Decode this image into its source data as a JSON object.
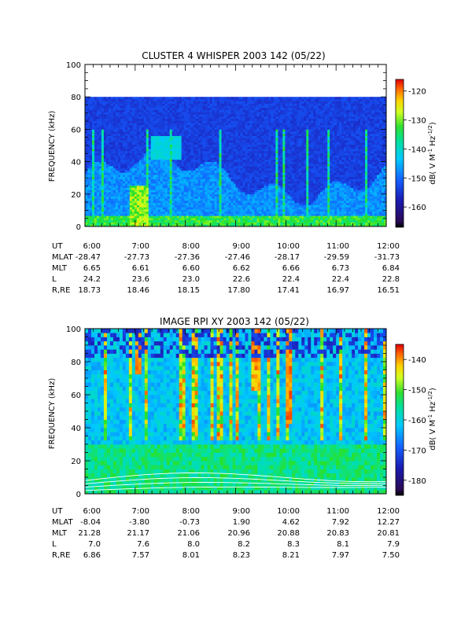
{
  "chart_data": [
    {
      "type": "heatmap",
      "title": "CLUSTER 4 WHISPER 2003 142 (05/22)",
      "ylabel": "FREQUENCY (kHz)",
      "yticks": [
        "0",
        "20",
        "40",
        "60",
        "80",
        "100"
      ],
      "ylim": [
        0,
        100
      ],
      "xlim_hours": [
        6,
        12
      ],
      "data_max_khz": 80,
      "colorbar": {
        "label": "dB( V M⁻¹ Hz⁻¹ᐟ²)",
        "label_main": "dB( V M",
        "label_sup1": "-1",
        "label_mid": " Hz",
        "label_sup2": "-1/2",
        "label_end": ")",
        "ticks": [
          "-120",
          "-130",
          "-140",
          "-150",
          "-160"
        ],
        "tick_values": [
          -120,
          -130,
          -140,
          -150,
          -160
        ],
        "range": [
          -167,
          -116
        ]
      },
      "ephemeris": {
        "row_labels": [
          "UT",
          "MLAT",
          "MLT",
          "L",
          "R,RE"
        ],
        "columns": [
          [
            "6:00",
            "7:00",
            "8:00",
            "9:00",
            "10:00",
            "11:00",
            "12:00"
          ],
          [
            "-28.47",
            "-27.73",
            "-27.36",
            "-27.46",
            "-28.17",
            "-29.59",
            "-31.73"
          ],
          [
            "6.65",
            "6.61",
            "6.60",
            "6.62",
            "6.66",
            "6.73",
            "6.84"
          ],
          [
            "24.2",
            "23.6",
            "23.0",
            "22.6",
            "22.4",
            "22.4",
            "22.8"
          ],
          [
            "18.73",
            "18.46",
            "18.15",
            "17.80",
            "17.41",
            "16.97",
            "16.51"
          ]
        ]
      }
    },
    {
      "type": "heatmap",
      "title": "IMAGE RPI XY 2003 142 (05/22)",
      "ylabel": "FREQUENCY (kHz)",
      "yticks": [
        "0",
        "20",
        "40",
        "60",
        "80",
        "100"
      ],
      "ylim": [
        0,
        100
      ],
      "xlim_hours": [
        6,
        12
      ],
      "data_max_khz": 100,
      "colorbar": {
        "label": "dB( V M⁻¹ Hz⁻¹ᐟ²)",
        "label_main": "dB( V M",
        "label_sup1": "-1",
        "label_mid": " Hz",
        "label_sup2": "-1/2",
        "label_end": ")",
        "ticks": [
          "-140",
          "-150",
          "-160",
          "-170",
          "-180"
        ],
        "tick_values": [
          -140,
          -150,
          -160,
          -170,
          -180
        ],
        "range": [
          -185,
          -135
        ]
      },
      "ephemeris": {
        "row_labels": [
          "UT",
          "MLAT",
          "MLT",
          "L",
          "R,RE"
        ],
        "columns": [
          [
            "6:00",
            "7:00",
            "8:00",
            "9:00",
            "10:00",
            "11:00",
            "12:00"
          ],
          [
            "-8.04",
            "-3.80",
            "-0.73",
            "1.90",
            "4.62",
            "7.92",
            "12.27"
          ],
          [
            "21.28",
            "21.17",
            "21.06",
            "20.96",
            "20.88",
            "20.83",
            "20.81"
          ],
          [
            "7.0",
            "7.6",
            "8.0",
            "8.2",
            "8.3",
            "8.1",
            "7.9"
          ],
          [
            "6.86",
            "7.57",
            "8.01",
            "8.23",
            "8.21",
            "7.97",
            "7.50"
          ]
        ]
      }
    }
  ]
}
